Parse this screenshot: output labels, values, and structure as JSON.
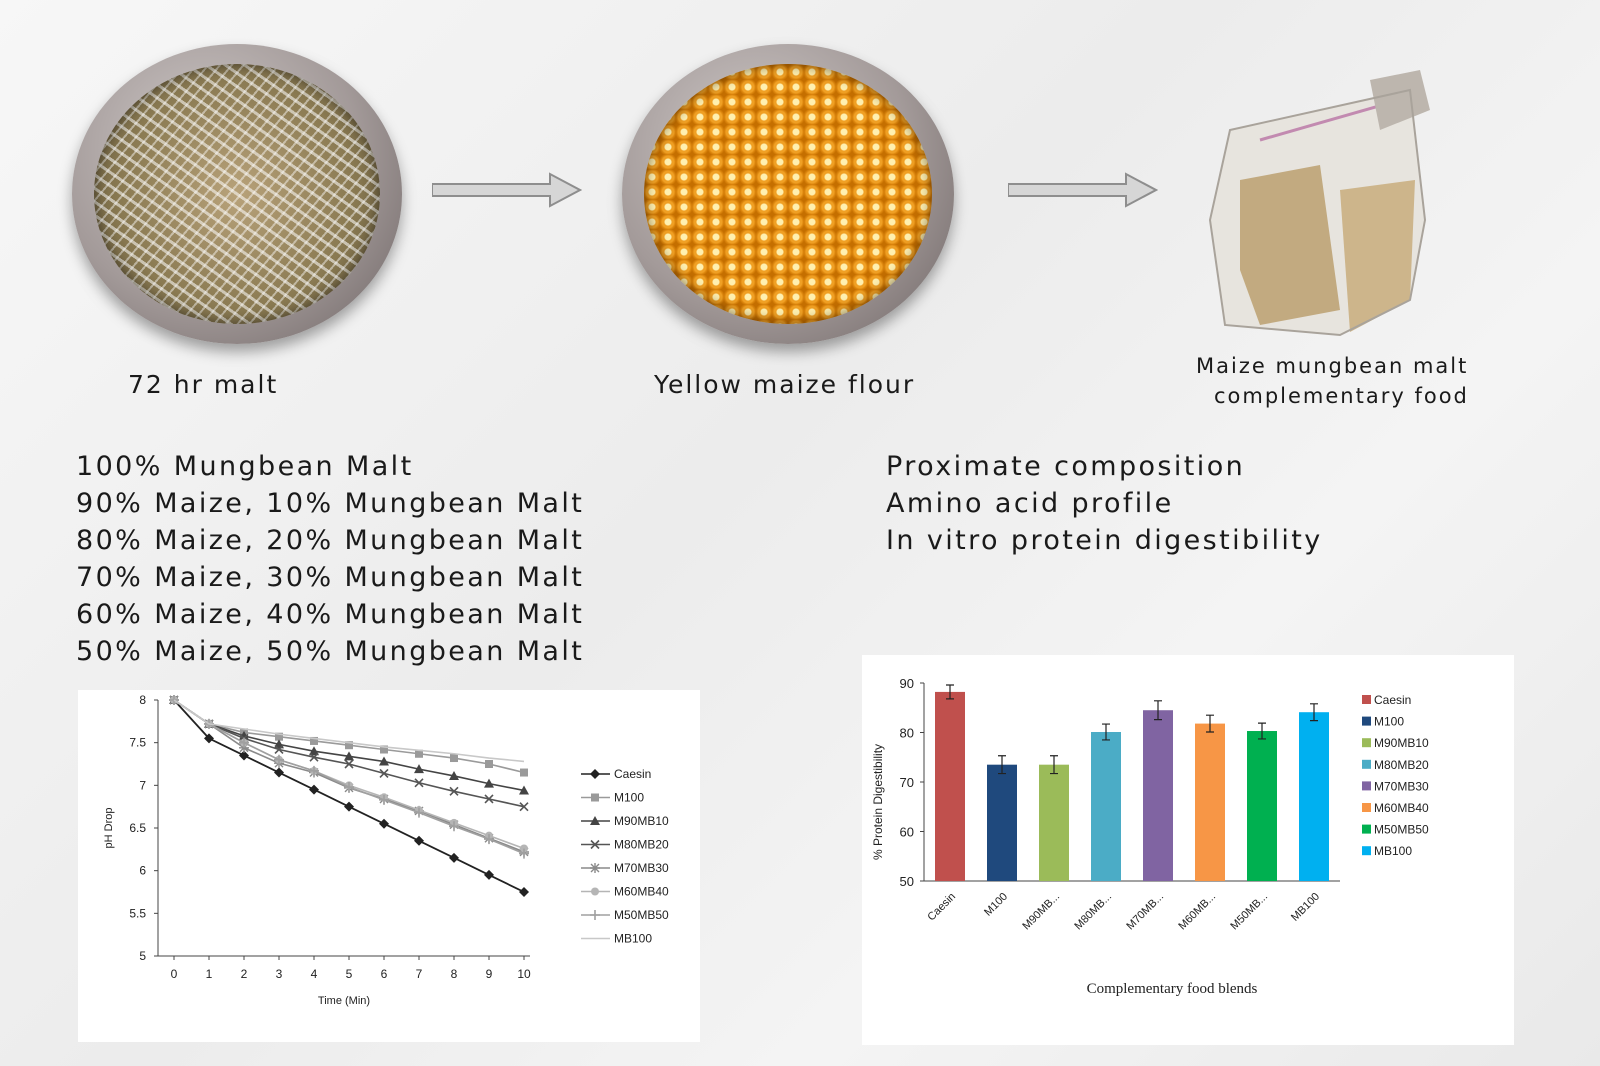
{
  "captions": {
    "malt": "72 hr malt",
    "flour": "Yellow maize flour",
    "food_line1": "Maize mungbean malt",
    "food_line2": "complementary food"
  },
  "blends": [
    "100% Mungbean Malt",
    "90% Maize, 10% Mungbean Malt",
    "80% Maize, 20% Mungbean Malt",
    "70% Maize, 30% Mungbean Malt",
    "60% Maize, 40% Mungbean Malt",
    "50% Maize, 50% Mungbean Malt"
  ],
  "analyses": [
    "Proximate composition",
    "Amino acid profile",
    "In vitro protein digestibility"
  ],
  "chart_data": [
    {
      "type": "line",
      "title": "",
      "xlabel": "Time (Min)",
      "ylabel": "pH Drop",
      "x": [
        0,
        1,
        2,
        3,
        4,
        5,
        6,
        7,
        8,
        9,
        10
      ],
      "xticks": [
        "0",
        "1",
        "2",
        "3",
        "4",
        "5",
        "6",
        "7",
        "8",
        "9",
        "10"
      ],
      "yticks": [
        "5",
        "5.5",
        "6",
        "6.5",
        "7",
        "7.5",
        "8"
      ],
      "ylim": [
        5,
        8
      ],
      "legend": "right",
      "series": [
        {
          "name": "Caesin",
          "marker": "diamond",
          "color": "#222222",
          "values": [
            8.0,
            7.55,
            7.35,
            7.15,
            6.95,
            6.75,
            6.55,
            6.35,
            6.15,
            5.95,
            5.75
          ]
        },
        {
          "name": "M100",
          "marker": "square",
          "color": "#9a9a9a",
          "values": [
            8.0,
            7.72,
            7.62,
            7.57,
            7.52,
            7.47,
            7.42,
            7.37,
            7.32,
            7.25,
            7.15
          ]
        },
        {
          "name": "M90MB10",
          "marker": "triangle",
          "color": "#444444",
          "values": [
            8.0,
            7.72,
            7.58,
            7.48,
            7.4,
            7.34,
            7.28,
            7.19,
            7.11,
            7.02,
            6.94
          ]
        },
        {
          "name": "M80MB20",
          "marker": "x",
          "color": "#555555",
          "values": [
            8.0,
            7.72,
            7.55,
            7.42,
            7.33,
            7.25,
            7.14,
            7.03,
            6.93,
            6.84,
            6.75
          ]
        },
        {
          "name": "M70MB30",
          "marker": "star",
          "color": "#8a8a8a",
          "values": [
            8.0,
            7.72,
            7.44,
            7.26,
            7.15,
            6.97,
            6.84,
            6.7,
            6.54,
            6.38,
            6.22
          ]
        },
        {
          "name": "M60MB40",
          "marker": "circle",
          "color": "#b5b5b5",
          "values": [
            8.0,
            7.72,
            7.5,
            7.3,
            7.17,
            7.0,
            6.86,
            6.71,
            6.56,
            6.41,
            6.26
          ]
        },
        {
          "name": "M50MB50",
          "marker": "plus",
          "color": "#a0a0a0",
          "values": [
            8.0,
            7.72,
            7.5,
            7.3,
            7.17,
            6.98,
            6.83,
            6.68,
            6.52,
            6.37,
            6.2
          ]
        },
        {
          "name": "MB100",
          "marker": "none",
          "color": "#c8c8c8",
          "values": [
            8.0,
            7.72,
            7.66,
            7.6,
            7.55,
            7.5,
            7.45,
            7.41,
            7.37,
            7.32,
            7.28
          ]
        }
      ]
    },
    {
      "type": "bar",
      "title": "",
      "xlabel": "Complementary food blends",
      "ylabel": "% Protein Digestibility",
      "categories": [
        "Caesin",
        "M100",
        "M90MB...",
        "M80MB...",
        "M70MB...",
        "M60MB...",
        "M50MB...",
        "MB100"
      ],
      "yticks": [
        "50",
        "60",
        "70",
        "80",
        "90"
      ],
      "ylim": [
        50,
        90
      ],
      "legend": "right",
      "legend_labels": [
        "Caesin",
        "M100",
        "M90MB10",
        "M80MB20",
        "M70MB30",
        "M60MB40",
        "M50MB50",
        "MB100"
      ],
      "colors": [
        "#c0504d",
        "#1f497d",
        "#9bbb59",
        "#4bacc6",
        "#8064a2",
        "#f79646",
        "#00b050",
        "#00b0f0"
      ],
      "values": [
        88.2,
        73.5,
        73.5,
        80.1,
        84.5,
        81.8,
        80.3,
        84.1
      ],
      "errors": [
        1.4,
        1.8,
        1.8,
        1.6,
        1.9,
        1.7,
        1.6,
        1.7
      ]
    }
  ]
}
